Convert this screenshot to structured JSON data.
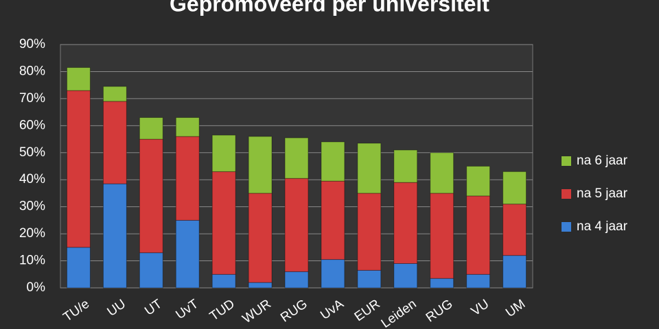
{
  "chart_data": {
    "type": "stacked_bar",
    "title": "Gepromoveerd per universiteit",
    "categories": [
      "TU/e",
      "UU",
      "UT",
      "UvT",
      "TUD",
      "WUR",
      "RUG",
      "UvA",
      "EUR",
      "Leiden",
      "RUG",
      "VU",
      "UM"
    ],
    "series": [
      {
        "name": "na 4 jaar",
        "color": "#3a7fd5",
        "values": [
          15,
          38.5,
          13,
          25,
          5,
          2,
          6,
          10.5,
          6.5,
          9,
          3.5,
          5,
          12
        ]
      },
      {
        "name": "na 5 jaar",
        "color": "#d43a3a",
        "values": [
          58,
          30.5,
          42,
          31,
          38,
          33,
          34.5,
          29,
          28.5,
          30,
          31.5,
          29,
          19
        ]
      },
      {
        "name": "na 6 jaar",
        "color": "#8cbf3a",
        "values": [
          8.5,
          5.5,
          8,
          7,
          13.5,
          21,
          15,
          14.5,
          18.5,
          12,
          15,
          11,
          12
        ]
      }
    ],
    "ylim": [
      0,
      90
    ],
    "yticks": [
      {
        "value": 0,
        "label": "0%"
      },
      {
        "value": 10,
        "label": "10%"
      },
      {
        "value": 20,
        "label": "20%"
      },
      {
        "value": 30,
        "label": "30%"
      },
      {
        "value": 40,
        "label": "40%"
      },
      {
        "value": 50,
        "label": "50%"
      },
      {
        "value": 60,
        "label": "60%"
      },
      {
        "value": 70,
        "label": "70%"
      },
      {
        "value": 80,
        "label": "80%"
      },
      {
        "value": 90,
        "label": "90%"
      }
    ],
    "grid": true,
    "legend": "right"
  }
}
